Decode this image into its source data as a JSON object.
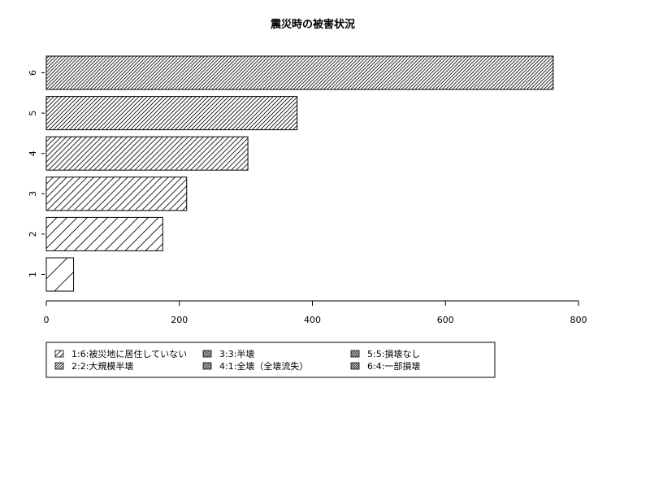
{
  "chart_data": {
    "type": "bar",
    "orientation": "horizontal",
    "title": "震災時の被害状況",
    "xlabel": "",
    "ylabel": "",
    "categories": [
      "1",
      "2",
      "3",
      "4",
      "5",
      "6"
    ],
    "values": [
      41,
      175,
      211,
      303,
      377,
      762
    ],
    "xlim": [
      0,
      800
    ],
    "xticks": [
      0,
      200,
      400,
      600,
      800
    ],
    "fill": "diagonal hatching, density increasing from bar 1 to bar 6",
    "grid": false,
    "legend": {
      "position": "bottom",
      "entries": [
        "1:6:被災地に居住していない",
        "2:2:大規模半壊",
        "3:3:半壊",
        "4:1:全壊（全壊流失）",
        "5:5:損壊なし",
        "6:4:一部損壊"
      ]
    }
  }
}
